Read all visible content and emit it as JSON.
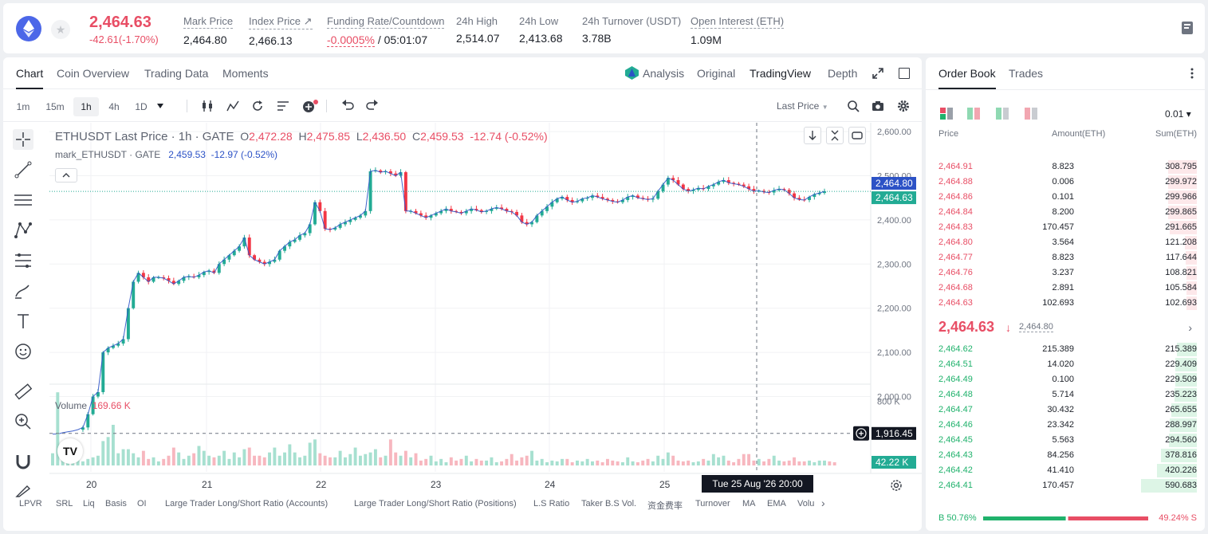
{
  "ticker": {
    "symbol_icon": "ethereum-logo",
    "favorite_icon": "star-icon",
    "last_price": "2,464.63",
    "change": "-42.61(-1.70%)",
    "stats": [
      {
        "label": "Mark Price",
        "value": "2,464.80"
      },
      {
        "label": "Index Price ↗",
        "value": "2,466.13"
      },
      {
        "label": "Funding Rate/Countdown",
        "value_neg": "-0.0005%",
        "value": " / 05:01:07"
      },
      {
        "label": "24h High",
        "value": "2,514.07"
      },
      {
        "label": "24h Low",
        "value": "2,413.68"
      },
      {
        "label": "24h Turnover (USDT)",
        "value": "3.78B"
      },
      {
        "label": "Open Interest (ETH)",
        "value": "1.09M"
      }
    ]
  },
  "chart_tabs": [
    "Chart",
    "Coin Overview",
    "Trading Data",
    "Moments"
  ],
  "view_tabs": [
    "Analysis",
    "Original",
    "TradingView",
    "Depth"
  ],
  "timeframes": [
    "1m",
    "15m",
    "1h",
    "4h",
    "1D"
  ],
  "price_source": "Last Price",
  "legend": {
    "title": "ETHUSDT Last Price · 1h · GATE",
    "o_label": "O",
    "o": "2,472.28",
    "h_label": "H",
    "h": "2,475.85",
    "l_label": "L",
    "l": "2,436.50",
    "c_label": "C",
    "c": "2,459.53",
    "chg": "-12.74 (-0.52%)",
    "mark_label": "mark_ETHUSDT · GATE",
    "mark_value": "2,459.53",
    "mark_chg": "-12.97 (-0.52%)"
  },
  "volume_legend": {
    "label": "Volume",
    "value": "169.66 K"
  },
  "price_axis": [
    "2,600.00",
    "2,500.00",
    "2,400.00",
    "2,300.00",
    "2,200.00",
    "2,100.00",
    "2,000.00"
  ],
  "volume_axis": [
    "800 K",
    "400 K"
  ],
  "price_tags": {
    "mark": "2,464.80",
    "last": "2,464.63",
    "cursor": "1,916.45",
    "volume": "42.22 K"
  },
  "date_axis": [
    "20",
    "21",
    "22",
    "23",
    "24",
    "25"
  ],
  "crosshair_time": "Tue 25 Aug '26   20:00",
  "indicators": [
    "LPVR",
    "SRL",
    "Liq",
    "Basis",
    "OI",
    "Large Trader Long/Short Ratio (Accounts)",
    "Large Trader Long/Short Ratio (Positions)",
    "L.S Ratio",
    "Taker B.S Vol.",
    "资金费率",
    "Turnover",
    "MA",
    "EMA",
    "Volu"
  ],
  "chart_data": {
    "type": "candlestick",
    "ylim": [
      1880,
      2620
    ],
    "volume_ylim": [
      0,
      1000000
    ],
    "colors": {
      "up": "#22ab94",
      "down": "#f23645",
      "line": "#2c52c6"
    },
    "close_series": [
      1915,
      1915,
      1918,
      1920,
      1922,
      1925,
      1930,
      1960,
      2000,
      2010,
      2100,
      2110,
      2115,
      2120,
      2130,
      2200,
      2260,
      2280,
      2270,
      2260,
      2270,
      2270,
      2268,
      2262,
      2255,
      2262,
      2270,
      2272,
      2270,
      2275,
      2282,
      2285,
      2280,
      2300,
      2310,
      2320,
      2330,
      2340,
      2360,
      2320,
      2310,
      2305,
      2300,
      2305,
      2310,
      2330,
      2340,
      2350,
      2355,
      2365,
      2370,
      2390,
      2440,
      2420,
      2380,
      2378,
      2382,
      2390,
      2395,
      2400,
      2405,
      2410,
      2420,
      2510,
      2512,
      2508,
      2510,
      2505,
      2500,
      2508,
      2420,
      2420,
      2415,
      2410,
      2405,
      2410,
      2415,
      2420,
      2425,
      2420,
      2418,
      2415,
      2420,
      2425,
      2422,
      2418,
      2420,
      2425,
      2428,
      2425,
      2420,
      2418,
      2410,
      2395,
      2390,
      2395,
      2410,
      2420,
      2430,
      2440,
      2448,
      2452,
      2445,
      2440,
      2442,
      2448,
      2450,
      2455,
      2452,
      2448,
      2445,
      2442,
      2440,
      2445,
      2452,
      2455,
      2450,
      2448,
      2446,
      2448,
      2465,
      2480,
      2495,
      2490,
      2480,
      2470,
      2465,
      2468,
      2472,
      2470,
      2476,
      2480,
      2486,
      2490,
      2484,
      2482,
      2480,
      2476,
      2470,
      2465,
      2466,
      2463,
      2462,
      2467,
      2470,
      2468,
      2460,
      2450,
      2446,
      2445,
      2452,
      2458,
      2461,
      2464.63
    ],
    "volume_series": [
      0.15,
      0.9,
      0.25,
      0.12,
      0.15,
      0.2,
      0.05,
      0.08,
      0.1,
      0.12,
      0.3,
      0.35,
      0.5,
      0.15,
      0.2,
      0.2,
      0.15,
      0.1,
      0.18,
      0.08,
      0.1,
      0.05,
      0.08,
      0.12,
      0.22,
      0.16,
      0.08,
      0.12,
      0.15,
      0.24,
      0.18,
      0.12,
      0.1,
      0.12,
      0.18,
      0.08,
      0.16,
      0.1,
      0.2,
      0.22,
      0.12,
      0.12,
      0.1,
      0.16,
      0.22,
      0.12,
      0.16,
      0.26,
      0.16,
      0.1,
      0.12,
      0.28,
      0.32,
      0.15,
      0.12,
      0.1,
      0.1,
      0.18,
      0.1,
      0.14,
      0.22,
      0.12,
      0.14,
      0.16,
      0.2,
      0.1,
      0.12,
      0.32,
      0.16,
      0.12,
      0.18,
      0.1,
      0.15,
      0.06,
      0.08,
      0.12,
      0.05,
      0.08,
      0.04,
      0.1,
      0.06,
      0.08,
      0.12,
      0.05,
      0.08,
      0.06,
      0.06,
      0.1,
      0.04,
      0.05,
      0.08,
      0.14,
      0.06,
      0.1,
      0.12,
      0.18,
      0.06,
      0.08,
      0.04,
      0.06,
      0.05,
      0.08,
      0.08,
      0.04,
      0.06,
      0.05,
      0.08,
      0.05,
      0.06,
      0.04,
      0.08,
      0.06,
      0.05,
      0.04,
      0.1,
      0.05,
      0.04,
      0.06,
      0.08,
      0.05,
      0.12,
      0.08,
      0.16,
      0.12,
      0.06,
      0.05,
      0.06,
      0.04,
      0.05,
      0.08,
      0.06,
      0.14,
      0.1,
      0.12,
      0.06,
      0.04,
      0.08,
      0.14,
      0.14,
      0.06,
      0.08,
      0.05,
      0.08,
      0.12,
      0.06,
      0.05,
      0.06,
      0.1,
      0.05,
      0.05,
      0.06,
      0.04,
      0.06,
      0.06,
      0.05,
      0.04
    ]
  },
  "orderbook": {
    "tabs": [
      "Order Book",
      "Trades"
    ],
    "precision": "0.01 ▾",
    "headers": [
      "Price",
      "Amount(ETH)",
      "Sum(ETH)"
    ],
    "asks": [
      {
        "price": "2,464.91",
        "amount": "8.823",
        "sum": "308.795",
        "depth": 0.52
      },
      {
        "price": "2,464.88",
        "amount": "0.006",
        "sum": "299.972",
        "depth": 0.51
      },
      {
        "price": "2,464.86",
        "amount": "0.101",
        "sum": "299.966",
        "depth": 0.51
      },
      {
        "price": "2,464.84",
        "amount": "8.200",
        "sum": "299.865",
        "depth": 0.51
      },
      {
        "price": "2,464.83",
        "amount": "170.457",
        "sum": "291.665",
        "depth": 0.49
      },
      {
        "price": "2,464.80",
        "amount": "3.564",
        "sum": "121.208",
        "depth": 0.21
      },
      {
        "price": "2,464.77",
        "amount": "8.823",
        "sum": "117.644",
        "depth": 0.2
      },
      {
        "price": "2,464.76",
        "amount": "3.237",
        "sum": "108.821",
        "depth": 0.19
      },
      {
        "price": "2,464.68",
        "amount": "2.891",
        "sum": "105.584",
        "depth": 0.18
      },
      {
        "price": "2,464.63",
        "amount": "102.693",
        "sum": "102.693",
        "depth": 0.18
      }
    ],
    "mid": {
      "price": "2,464.63",
      "arrow": "🡓",
      "mark": "2,464.80",
      "chevron": "›"
    },
    "bids": [
      {
        "price": "2,464.62",
        "amount": "215.389",
        "sum": "215.389",
        "depth": 0.36
      },
      {
        "price": "2,464.51",
        "amount": "14.020",
        "sum": "229.409",
        "depth": 0.39
      },
      {
        "price": "2,464.49",
        "amount": "0.100",
        "sum": "229.509",
        "depth": 0.39
      },
      {
        "price": "2,464.48",
        "amount": "5.714",
        "sum": "235.223",
        "depth": 0.4
      },
      {
        "price": "2,464.47",
        "amount": "30.432",
        "sum": "265.655",
        "depth": 0.45
      },
      {
        "price": "2,464.46",
        "amount": "23.342",
        "sum": "288.997",
        "depth": 0.49
      },
      {
        "price": "2,464.45",
        "amount": "5.563",
        "sum": "294.560",
        "depth": 0.5
      },
      {
        "price": "2,464.43",
        "amount": "84.256",
        "sum": "378.816",
        "depth": 0.64
      },
      {
        "price": "2,464.42",
        "amount": "41.410",
        "sum": "420.226",
        "depth": 0.71
      },
      {
        "price": "2,464.41",
        "amount": "170.457",
        "sum": "590.683",
        "depth": 1.0
      }
    ],
    "buy_ratio": "B 50.76%",
    "sell_ratio": "49.24% S",
    "buy_fraction": 0.5076
  }
}
